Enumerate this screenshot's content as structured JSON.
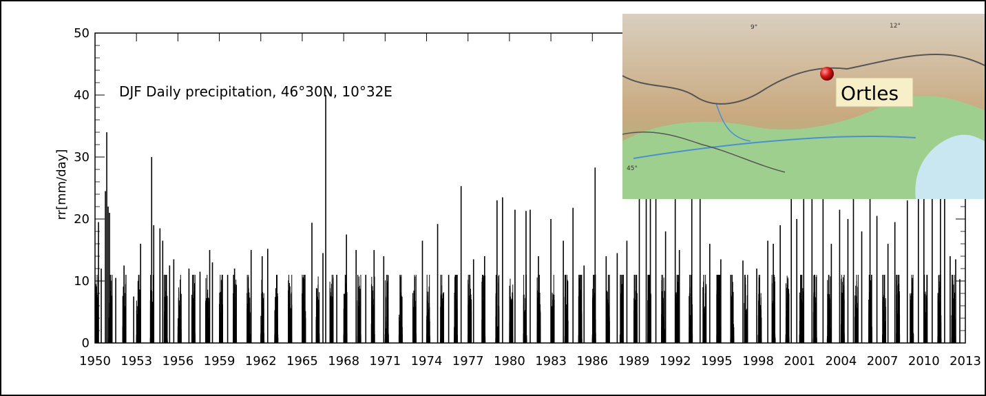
{
  "chart_data": {
    "type": "bar",
    "title": "DJF Daily precipitation, 46°30N, 10°32E",
    "ylabel": "rr[mm/day]",
    "xlabel": "",
    "ylim": [
      0,
      50
    ],
    "xlim": [
      1950,
      2013
    ],
    "yticks": [
      "0",
      "10",
      "20",
      "30",
      "40",
      "50"
    ],
    "xticks": [
      "1950",
      "1953",
      "1956",
      "1959",
      "1962",
      "1965",
      "1968",
      "1971",
      "1974",
      "1977",
      "1980",
      "1983",
      "1986",
      "1989",
      "1992",
      "1995",
      "1998",
      "2001",
      "2004",
      "2007",
      "2010",
      "2013"
    ],
    "grid": false,
    "series": [
      {
        "values": [
          {
            "x": 1950.05,
            "y": 9.5
          },
          {
            "x": 1950.25,
            "y": 19.5
          },
          {
            "x": 1950.45,
            "y": 12
          },
          {
            "x": 1950.75,
            "y": 24.5
          },
          {
            "x": 1950.85,
            "y": 34
          },
          {
            "x": 1950.95,
            "y": 22
          },
          {
            "x": 1951.05,
            "y": 21
          },
          {
            "x": 1951.5,
            "y": 10.5
          },
          {
            "x": 1952.1,
            "y": 12.5
          },
          {
            "x": 1952.8,
            "y": 7.5
          },
          {
            "x": 1953.3,
            "y": 16
          },
          {
            "x": 1954.1,
            "y": 30
          },
          {
            "x": 1954.25,
            "y": 19
          },
          {
            "x": 1954.7,
            "y": 18.5
          },
          {
            "x": 1954.9,
            "y": 16.5
          },
          {
            "x": 1955.4,
            "y": 12.5
          },
          {
            "x": 1955.7,
            "y": 13.5
          },
          {
            "x": 1956.8,
            "y": 12
          },
          {
            "x": 1957.6,
            "y": 11.5
          },
          {
            "x": 1958.3,
            "y": 15
          },
          {
            "x": 1958.5,
            "y": 13
          },
          {
            "x": 1959.6,
            "y": 11
          },
          {
            "x": 1960.1,
            "y": 12
          },
          {
            "x": 1961.3,
            "y": 15
          },
          {
            "x": 1962.1,
            "y": 14
          },
          {
            "x": 1962.5,
            "y": 15.2
          },
          {
            "x": 1963.2,
            "y": 8
          },
          {
            "x": 1964.0,
            "y": 8.5
          },
          {
            "x": 1965.0,
            "y": 8
          },
          {
            "x": 1965.7,
            "y": 19.4
          },
          {
            "x": 1966.5,
            "y": 14.5
          },
          {
            "x": 1966.7,
            "y": 40
          },
          {
            "x": 1967.5,
            "y": 11
          },
          {
            "x": 1968.2,
            "y": 17.5
          },
          {
            "x": 1968.9,
            "y": 15
          },
          {
            "x": 1969.6,
            "y": 11
          },
          {
            "x": 1970.2,
            "y": 15
          },
          {
            "x": 1970.9,
            "y": 14
          },
          {
            "x": 1972.1,
            "y": 8
          },
          {
            "x": 1973.1,
            "y": 6.5
          },
          {
            "x": 1973.7,
            "y": 16.5
          },
          {
            "x": 1974.8,
            "y": 19.2
          },
          {
            "x": 1975.6,
            "y": 11
          },
          {
            "x": 1976.5,
            "y": 25.3
          },
          {
            "x": 1977.4,
            "y": 13.5
          },
          {
            "x": 1978.2,
            "y": 14
          },
          {
            "x": 1979.1,
            "y": 23
          },
          {
            "x": 1979.5,
            "y": 23.5
          },
          {
            "x": 1980.4,
            "y": 21.5
          },
          {
            "x": 1981.2,
            "y": 21.3
          },
          {
            "x": 1981.5,
            "y": 21.5
          },
          {
            "x": 1982.1,
            "y": 14
          },
          {
            "x": 1983.0,
            "y": 20
          },
          {
            "x": 1983.9,
            "y": 16.5
          },
          {
            "x": 1984.6,
            "y": 21.8
          },
          {
            "x": 1985.4,
            "y": 12.5
          },
          {
            "x": 1986.2,
            "y": 28.3
          },
          {
            "x": 1987.0,
            "y": 14
          },
          {
            "x": 1987.8,
            "y": 14.5
          },
          {
            "x": 1988.5,
            "y": 16.5
          },
          {
            "x": 1989.4,
            "y": 24
          },
          {
            "x": 1989.9,
            "y": 24.5
          },
          {
            "x": 1990.2,
            "y": 25
          },
          {
            "x": 1990.6,
            "y": 26
          },
          {
            "x": 1991.3,
            "y": 18
          },
          {
            "x": 1992.0,
            "y": 23.5
          },
          {
            "x": 1992.3,
            "y": 15
          },
          {
            "x": 1993.2,
            "y": 26.5
          },
          {
            "x": 1993.8,
            "y": 27
          },
          {
            "x": 1994.5,
            "y": 16
          },
          {
            "x": 1995.3,
            "y": 13.5
          },
          {
            "x": 1996.9,
            "y": 13.3
          },
          {
            "x": 1997.9,
            "y": 12
          },
          {
            "x": 1998.7,
            "y": 16.5
          },
          {
            "x": 1999.1,
            "y": 16
          },
          {
            "x": 1999.6,
            "y": 19
          },
          {
            "x": 2000.4,
            "y": 24.8
          },
          {
            "x": 2000.8,
            "y": 20
          },
          {
            "x": 2001.3,
            "y": 24
          },
          {
            "x": 2001.9,
            "y": 26
          },
          {
            "x": 2002.7,
            "y": 24
          },
          {
            "x": 2003.3,
            "y": 16
          },
          {
            "x": 2003.9,
            "y": 21.5
          },
          {
            "x": 2004.5,
            "y": 20
          },
          {
            "x": 2004.9,
            "y": 26
          },
          {
            "x": 2005.5,
            "y": 18
          },
          {
            "x": 2006.1,
            "y": 25
          },
          {
            "x": 2006.6,
            "y": 20.5
          },
          {
            "x": 2007.4,
            "y": 16
          },
          {
            "x": 2007.9,
            "y": 19.5
          },
          {
            "x": 2008.8,
            "y": 23
          },
          {
            "x": 2009.6,
            "y": 28
          },
          {
            "x": 2010.0,
            "y": 26
          },
          {
            "x": 2010.6,
            "y": 26.5
          },
          {
            "x": 2011.2,
            "y": 27.5
          },
          {
            "x": 2011.5,
            "y": 24.5
          },
          {
            "x": 2011.9,
            "y": 14
          },
          {
            "x": 2012.3,
            "y": 13.5
          },
          {
            "x": 2012.6,
            "y": 10.3
          }
        ]
      }
    ],
    "inset_map": {
      "marker_label": "Ortles",
      "longitude_labels": [
        "9°",
        "12°"
      ],
      "latitude_labels": [
        "45°"
      ]
    }
  }
}
